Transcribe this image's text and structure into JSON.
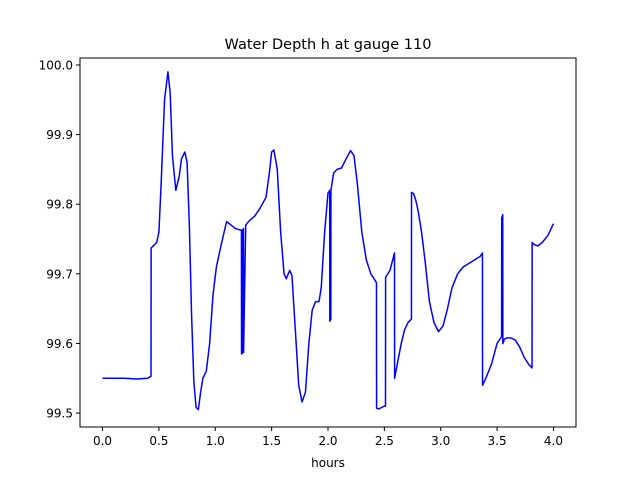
{
  "chart_data": {
    "type": "line",
    "title": "Water Depth h at gauge 110",
    "xlabel": "hours",
    "ylabel": "",
    "xlim": [
      -0.2,
      4.2
    ],
    "ylim": [
      99.48,
      100.01
    ],
    "xticks": [
      "0.0",
      "0.5",
      "1.0",
      "1.5",
      "2.0",
      "2.5",
      "3.0",
      "3.5",
      "4.0"
    ],
    "yticks": [
      "99.5",
      "99.6",
      "99.7",
      "99.8",
      "99.9",
      "100.0"
    ],
    "grid": false,
    "legend": "none",
    "series": [
      {
        "color": "#0000ff",
        "x": [
          0.0,
          0.1,
          0.2,
          0.3,
          0.4,
          0.43,
          0.431,
          0.48,
          0.5,
          0.52,
          0.55,
          0.58,
          0.6,
          0.62,
          0.65,
          0.68,
          0.7,
          0.73,
          0.75,
          0.77,
          0.79,
          0.81,
          0.83,
          0.85,
          0.87,
          0.89,
          0.92,
          0.95,
          0.98,
          1.01,
          1.05,
          1.1,
          1.14,
          1.18,
          1.22,
          1.232,
          1.233,
          1.24,
          1.241,
          1.25,
          1.251,
          1.27,
          1.3,
          1.35,
          1.4,
          1.45,
          1.48,
          1.5,
          1.52,
          1.55,
          1.58,
          1.61,
          1.63,
          1.66,
          1.68,
          1.71,
          1.74,
          1.77,
          1.8,
          1.83,
          1.86,
          1.89,
          1.92,
          1.94,
          1.97,
          2.0,
          2.015,
          2.016,
          2.025,
          2.026,
          2.05,
          2.08,
          2.12,
          2.16,
          2.2,
          2.23,
          2.26,
          2.3,
          2.34,
          2.38,
          2.42,
          2.43,
          2.431,
          2.45,
          2.5,
          2.51,
          2.511,
          2.55,
          2.59,
          2.591,
          2.62,
          2.65,
          2.68,
          2.71,
          2.74,
          2.741,
          2.76,
          2.78,
          2.8,
          2.83,
          2.86,
          2.9,
          2.94,
          2.98,
          3.02,
          3.06,
          3.1,
          3.15,
          3.2,
          3.25,
          3.3,
          3.35,
          3.37,
          3.371,
          3.4,
          3.45,
          3.5,
          3.54,
          3.541,
          3.55,
          3.551,
          3.56,
          3.561,
          3.59,
          3.62,
          3.66,
          3.7,
          3.74,
          3.78,
          3.81,
          3.811,
          3.83,
          3.86,
          3.9,
          3.95,
          4.0
        ],
        "values": [
          99.55,
          99.55,
          99.55,
          99.549,
          99.55,
          99.553,
          99.737,
          99.745,
          99.76,
          99.83,
          99.95,
          99.99,
          99.96,
          99.87,
          99.82,
          99.84,
          99.865,
          99.875,
          99.86,
          99.77,
          99.64,
          99.545,
          99.508,
          99.505,
          99.53,
          99.55,
          99.56,
          99.6,
          99.67,
          99.71,
          99.74,
          99.775,
          99.77,
          99.765,
          99.763,
          99.763,
          99.585,
          99.586,
          99.762,
          99.765,
          99.587,
          99.77,
          99.776,
          99.783,
          99.795,
          99.81,
          99.845,
          99.875,
          99.878,
          99.85,
          99.76,
          99.7,
          99.693,
          99.705,
          99.698,
          99.62,
          99.54,
          99.516,
          99.53,
          99.6,
          99.648,
          99.66,
          99.66,
          99.68,
          99.76,
          99.816,
          99.82,
          99.632,
          99.635,
          99.82,
          99.845,
          99.85,
          99.852,
          99.865,
          99.877,
          99.87,
          99.83,
          99.76,
          99.72,
          99.7,
          99.69,
          99.687,
          99.507,
          99.506,
          99.51,
          99.51,
          99.695,
          99.705,
          99.73,
          99.55,
          99.575,
          99.6,
          99.62,
          99.63,
          99.635,
          99.817,
          99.815,
          99.805,
          99.79,
          99.76,
          99.72,
          99.66,
          99.63,
          99.617,
          99.625,
          99.65,
          99.68,
          99.7,
          99.71,
          99.715,
          99.72,
          99.725,
          99.73,
          99.54,
          99.55,
          99.57,
          99.6,
          99.61,
          99.78,
          99.785,
          99.6,
          99.603,
          99.606,
          99.608,
          99.608,
          99.605,
          99.595,
          99.58,
          99.57,
          99.565,
          99.745,
          99.742,
          99.74,
          99.745,
          99.755,
          99.772
        ]
      }
    ]
  }
}
